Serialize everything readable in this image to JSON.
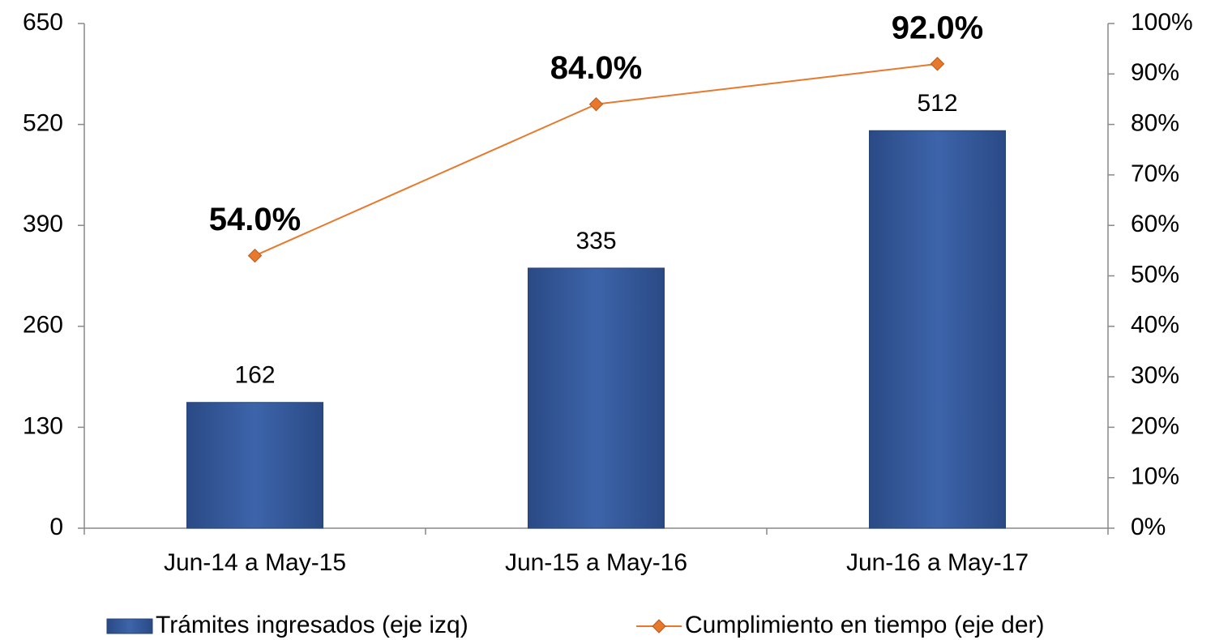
{
  "chart_data": {
    "type": "bar-line",
    "categories": [
      "Jun-14 a May-15",
      "Jun-15 a May-16",
      "Jun-16 a May-17"
    ],
    "series": [
      {
        "name": "Trámites ingresados (eje izq)",
        "type": "bar",
        "color": "#375e9f",
        "values": [
          162,
          335,
          512
        ]
      },
      {
        "name": "Cumplimiento en tiempo (eje der)",
        "type": "line",
        "axis": "y2",
        "color": "#e8782b",
        "values": [
          54,
          84,
          92
        ],
        "value_labels": [
          "54.0%",
          "84.0%",
          "92.0%"
        ]
      }
    ],
    "ylim": [
      0,
      650
    ],
    "yticks": [
      0,
      130,
      260,
      390,
      520,
      650
    ],
    "y2lim": [
      0,
      100
    ],
    "y2ticks": [
      {
        "value": 0,
        "label": "0%"
      },
      {
        "value": 10,
        "label": "10%"
      },
      {
        "value": 20,
        "label": "20%"
      },
      {
        "value": 30,
        "label": "30%"
      },
      {
        "value": 40,
        "label": "40%"
      },
      {
        "value": 50,
        "label": "50%"
      },
      {
        "value": 60,
        "label": "60%"
      },
      {
        "value": 70,
        "label": "70%"
      },
      {
        "value": 80,
        "label": "80%"
      },
      {
        "value": 90,
        "label": "90%"
      },
      {
        "value": 100,
        "label": "100%"
      }
    ],
    "grid": false,
    "legend": "bottom"
  }
}
